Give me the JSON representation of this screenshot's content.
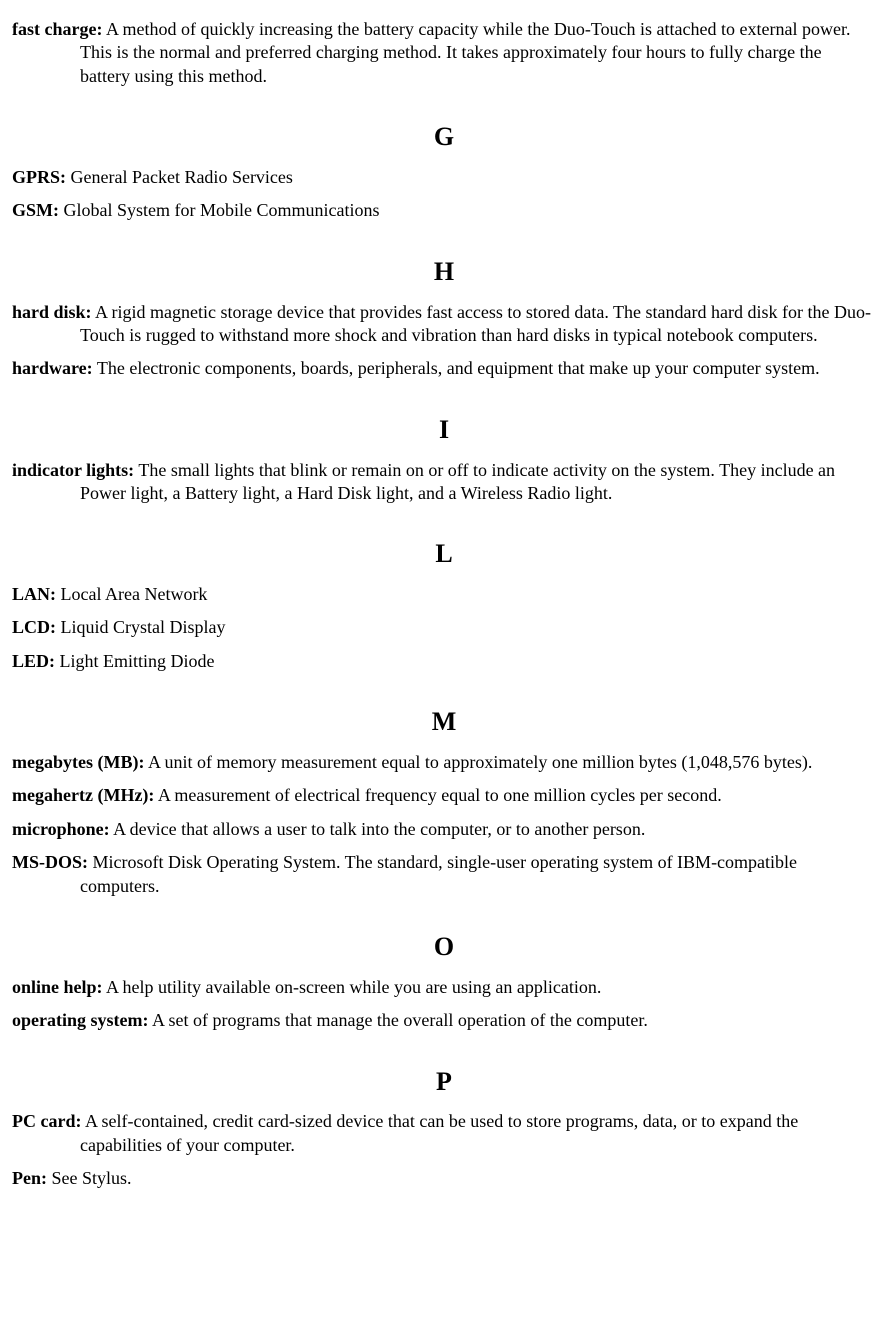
{
  "sections": [
    {
      "letter": "",
      "entries": [
        {
          "term": "fast charge:",
          "def": " A method of quickly increasing the battery capacity while the Duo-Touch is attached to external power. This is the normal and preferred charging method. It takes approximately four hours to fully charge the battery using this method."
        }
      ]
    },
    {
      "letter": "G",
      "entries": [
        {
          "term": "GPRS:",
          "def": " General Packet Radio Services"
        },
        {
          "term": "GSM:",
          "def": " Global System for Mobile Communications"
        }
      ]
    },
    {
      "letter": "H",
      "entries": [
        {
          "term": "hard disk:",
          "def": " A rigid magnetic storage device that provides fast access to stored data. The standard hard disk for the Duo-Touch is rugged to withstand more shock and vibration than hard disks in typical notebook computers."
        },
        {
          "term": "hardware:",
          "def": " The electronic components, boards, peripherals, and equipment that make up your computer system."
        }
      ]
    },
    {
      "letter": "I",
      "entries": [
        {
          "term": "indicator lights:",
          "def": " The small lights that blink or remain on or off to indicate activity on the system. They include an Power light, a Battery light, a Hard Disk light, and a Wireless Radio light."
        }
      ]
    },
    {
      "letter": "L",
      "entries": [
        {
          "term": "LAN:",
          "def": " Local Area Network"
        },
        {
          "term": "LCD:",
          "def": " Liquid Crystal Display"
        },
        {
          "term": "LED:",
          "def": " Light Emitting Diode"
        }
      ]
    },
    {
      "letter": "M",
      "entries": [
        {
          "term": "megabytes (MB):",
          "def": " A unit of memory measurement equal to approximately one million bytes (1,048,576 bytes)."
        },
        {
          "term": "megahertz (MHz):",
          "def": " A measurement of electrical frequency equal to one million cycles per second."
        },
        {
          "term": "microphone:",
          "def": " A device that allows a user to talk into the computer, or to another person."
        },
        {
          "term": "MS-DOS:",
          "def": " Microsoft Disk Operating System. The standard, single-user operating system of IBM-compatible computers."
        }
      ]
    },
    {
      "letter": "O",
      "entries": [
        {
          "term": "online help:",
          "def": " A help utility available on-screen while you are using an application."
        },
        {
          "term": "operating system:",
          "def": " A set of programs that manage the overall operation of the computer."
        }
      ]
    },
    {
      "letter": "P",
      "entries": [
        {
          "term": "PC card:",
          "def": " A self-contained, credit card-sized device that can be used to store programs, data, or to expand the capabilities of your computer."
        },
        {
          "term": "Pen:",
          "def": " See Stylus."
        }
      ]
    }
  ]
}
